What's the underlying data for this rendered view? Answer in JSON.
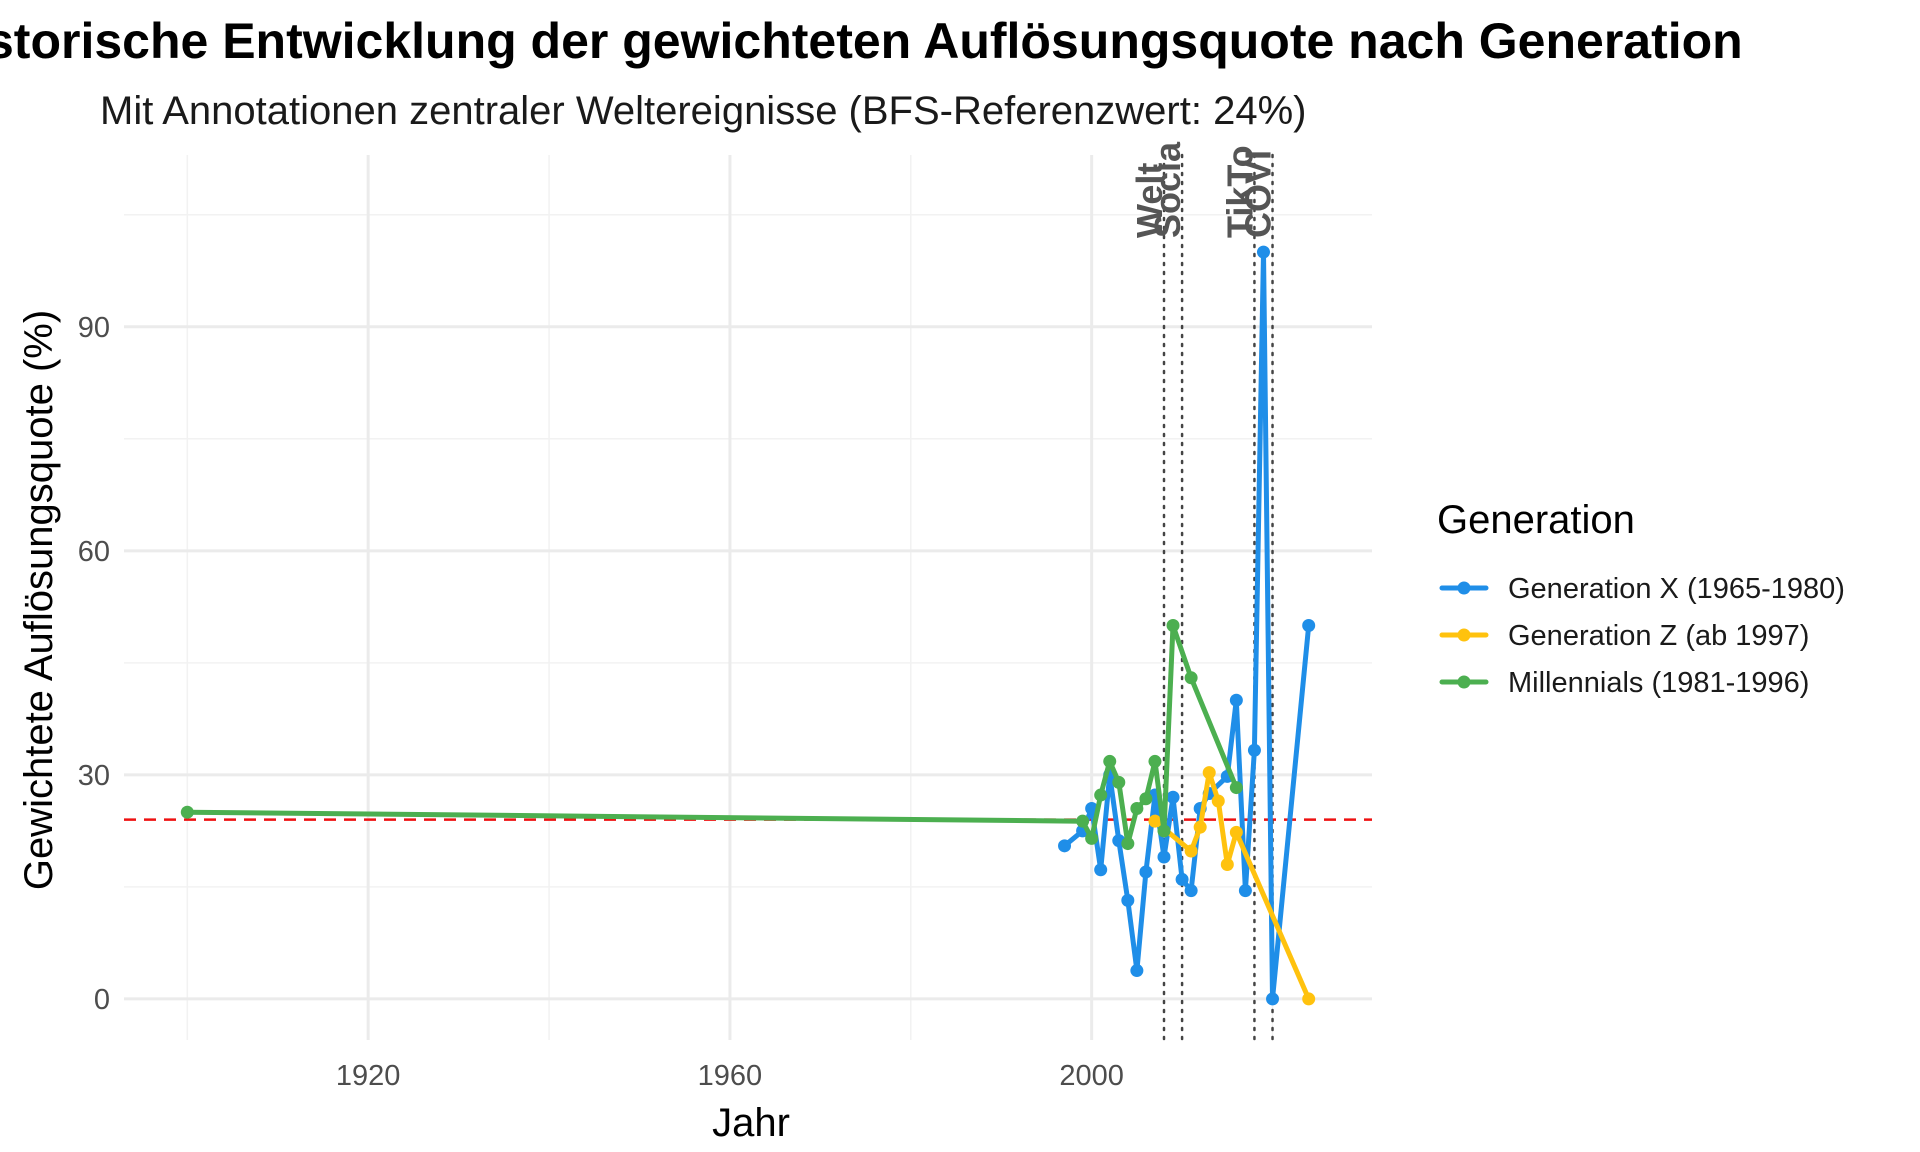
{
  "chart_data": {
    "type": "line",
    "title": "Historische Entwicklung der gewichteten Auflösungsquote nach Generation",
    "subtitle": "Mit Annotationen zentraler Weltereignisse (BFS-Referenzwert: 24%)",
    "xlabel": "Jahr",
    "ylabel": "Gewichtete Auflösungsquote (%)",
    "xlim": [
      1893,
      2031
    ],
    "ylim": [
      -5.5,
      113
    ],
    "x_ticks": [
      1920,
      1960,
      2000
    ],
    "y_ticks": [
      0,
      30,
      60,
      90
    ],
    "grid": true,
    "legend": {
      "title": "Generation",
      "position": "right",
      "entries": [
        "Generation X (1965-1980)",
        "Generation Z (ab 1997)",
        "Millennials (1981-1996)"
      ]
    },
    "reference_line": {
      "y": 24,
      "color": "#ee1111",
      "style": "dashed"
    },
    "event_lines": [
      {
        "x": 2008,
        "label": "Welt"
      },
      {
        "x": 2010,
        "label": "Socia"
      },
      {
        "x": 2018,
        "label": "TikTo"
      },
      {
        "x": 2020,
        "label": "COVI"
      }
    ],
    "series": [
      {
        "name": "Generation X (1965-1980)",
        "color": "#1f8ee8",
        "points": [
          [
            1997,
            20.5
          ],
          [
            1999,
            22.5
          ],
          [
            2000,
            25.5
          ],
          [
            2001,
            17.3
          ],
          [
            2002,
            30
          ],
          [
            2003,
            21.2
          ],
          [
            2004,
            13.2
          ],
          [
            2005,
            3.8
          ],
          [
            2006,
            17
          ],
          [
            2007,
            27.3
          ],
          [
            2008,
            19
          ],
          [
            2009,
            27
          ],
          [
            2010,
            16
          ],
          [
            2011,
            14.5
          ],
          [
            2012,
            25.5
          ],
          [
            2013,
            27.5
          ],
          [
            2015,
            29.8
          ],
          [
            2016,
            40
          ],
          [
            2017,
            14.5
          ],
          [
            2018,
            33.3
          ],
          [
            2019,
            100
          ],
          [
            2020,
            0
          ],
          [
            2024,
            50
          ]
        ]
      },
      {
        "name": "Generation Z (ab 1997)",
        "color": "#ffc20e",
        "points": [
          [
            2007,
            23.8
          ],
          [
            2011,
            19.8
          ],
          [
            2012,
            23
          ],
          [
            2013,
            30.3
          ],
          [
            2014,
            26.5
          ],
          [
            2015,
            18
          ],
          [
            2016,
            22.3
          ],
          [
            2024,
            0
          ]
        ]
      },
      {
        "name": "Millennials (1981-1996)",
        "color": "#4caf50",
        "points": [
          [
            1900,
            25
          ],
          [
            1999,
            23.8
          ],
          [
            2000,
            21.5
          ],
          [
            2001,
            27.3
          ],
          [
            2002,
            31.8
          ],
          [
            2003,
            29
          ],
          [
            2004,
            20.8
          ],
          [
            2005,
            25.5
          ],
          [
            2006,
            26.8
          ],
          [
            2007,
            31.8
          ],
          [
            2008,
            22.5
          ],
          [
            2009,
            50
          ],
          [
            2011,
            43
          ],
          [
            2016,
            28.3
          ]
        ]
      }
    ]
  }
}
